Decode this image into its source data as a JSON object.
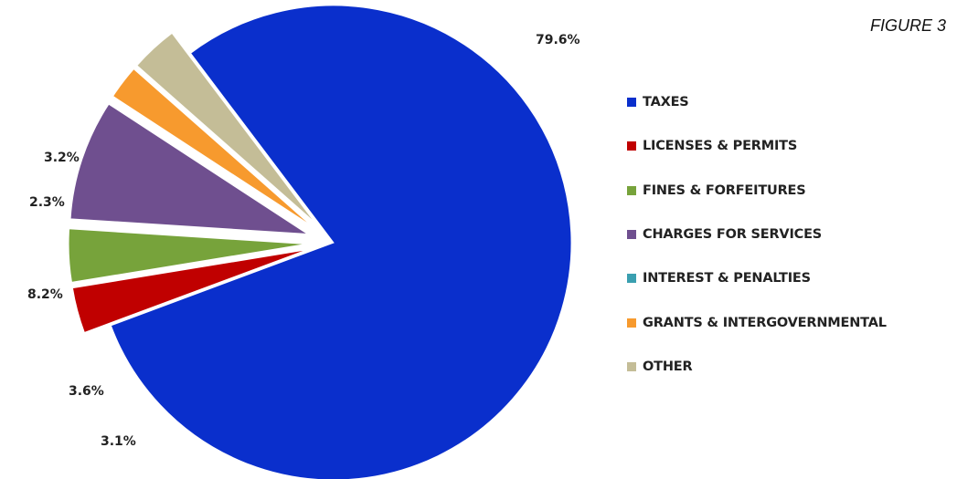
{
  "figure_label": "FIGURE 3",
  "chart_data": {
    "type": "pie",
    "title": "",
    "legend_position": "right",
    "slices": [
      {
        "label": "TAXES",
        "value": 79.6,
        "value_label": "79.6%",
        "color": "#0a2fcc"
      },
      {
        "label": "LICENSES & PERMITS",
        "value": 3.1,
        "value_label": "3.1%",
        "color": "#c00000"
      },
      {
        "label": "FINES & FORFEITURES",
        "value": 3.6,
        "value_label": "3.6%",
        "color": "#77a33b"
      },
      {
        "label": "CHARGES FOR SERVICES",
        "value": 8.2,
        "value_label": "8.2%",
        "color": "#6f4f8f"
      },
      {
        "label": "INTEREST & PENALTIES",
        "value": 0.0,
        "value_label": "",
        "color": "#3a9fb0"
      },
      {
        "label": "GRANTS & INTERGOVERNMENTAL",
        "value": 2.3,
        "value_label": "2.3%",
        "color": "#f79a2e"
      },
      {
        "label": "OTHER",
        "value": 3.2,
        "value_label": "3.2%",
        "color": "#c4bd97"
      }
    ]
  }
}
